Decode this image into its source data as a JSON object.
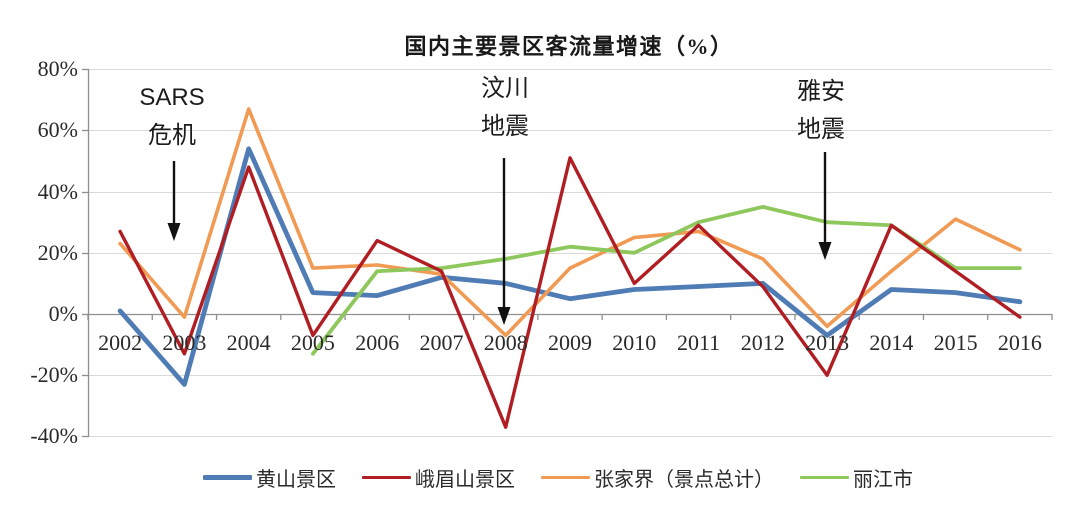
{
  "title": "国内主要景区客流量增速（%）",
  "chart_data": {
    "type": "line",
    "title": "国内主要景区客流量增速（%）",
    "x_labels": [
      "2002",
      "2003",
      "2004",
      "2005",
      "2006",
      "2007",
      "2008",
      "2009",
      "2010",
      "2011",
      "2012",
      "2013",
      "2014",
      "2015",
      "2016"
    ],
    "y_tick_labels": [
      "80%",
      "60%",
      "40%",
      "20%",
      "0%",
      "-20%",
      "-40%"
    ],
    "y_tick_values": [
      80,
      60,
      40,
      20,
      0,
      -20,
      -40
    ],
    "ylim": [
      -40,
      80
    ],
    "unit": "%",
    "grid": "horizontal",
    "legend_position": "bottom",
    "series": [
      {
        "name": "黄山景区",
        "color": "#4f7cb4",
        "line_width": 4.8,
        "values": [
          1,
          -23,
          54,
          7,
          6,
          12,
          10,
          5,
          8,
          9,
          10,
          -7,
          8,
          7,
          4
        ]
      },
      {
        "name": "峨眉山景区",
        "color": "#b01e23",
        "line_width": 3.4,
        "values": [
          27,
          -13,
          48,
          -7,
          24,
          14,
          -37,
          51,
          10,
          29,
          9,
          -20,
          29,
          14,
          -1
        ]
      },
      {
        "name": "张家界（景点总计）",
        "color": "#f09a54",
        "line_width": 3.6,
        "values": [
          23,
          -1,
          67,
          15,
          16,
          13,
          -7,
          15,
          25,
          27,
          18,
          -4,
          14,
          31,
          21
        ]
      },
      {
        "name": "丽江市",
        "color": "#8ec85c",
        "line_width": 3.8,
        "values": [
          null,
          null,
          null,
          -13,
          14,
          15,
          18,
          22,
          20,
          30,
          35,
          30,
          29,
          15,
          15
        ]
      }
    ],
    "draw_order": [
      0,
      2,
      3,
      1
    ]
  },
  "annotations": [
    {
      "line1": "SARS",
      "line2": "危机",
      "points_to_year": "2003"
    },
    {
      "line1": "汶川",
      "line2": "地震",
      "points_to_year": "2008"
    },
    {
      "line1": "雅安",
      "line2": "地震",
      "points_to_year": "2013"
    }
  ]
}
